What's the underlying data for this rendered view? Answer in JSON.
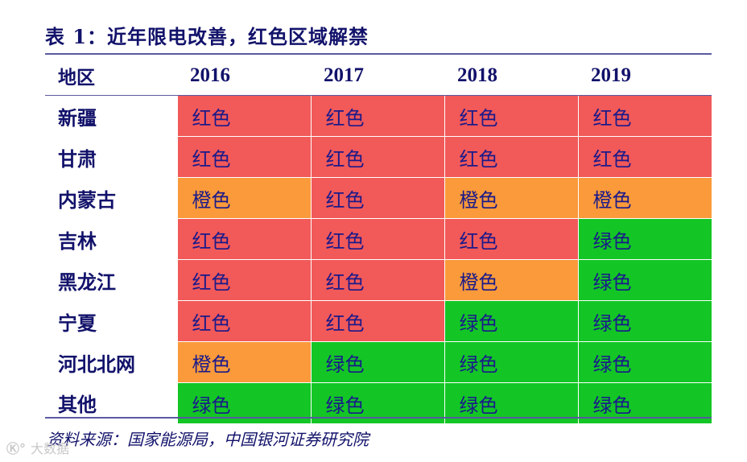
{
  "title": "表 1：近年限电改善，红色区域解禁",
  "header": {
    "region_label": "地区",
    "years": [
      "2016",
      "2017",
      "2018",
      "2019"
    ]
  },
  "rows": [
    {
      "region": "新疆",
      "values": [
        "红色",
        "红色",
        "红色",
        "红色"
      ]
    },
    {
      "region": "甘肃",
      "values": [
        "红色",
        "红色",
        "红色",
        "红色"
      ]
    },
    {
      "region": "内蒙古",
      "values": [
        "橙色",
        "红色",
        "橙色",
        "橙色"
      ]
    },
    {
      "region": "吉林",
      "values": [
        "红色",
        "红色",
        "红色",
        "绿色"
      ]
    },
    {
      "region": "黑龙江",
      "values": [
        "红色",
        "红色",
        "橙色",
        "绿色"
      ]
    },
    {
      "region": "宁夏",
      "values": [
        "红色",
        "红色",
        "绿色",
        "绿色"
      ]
    },
    {
      "region": "河北北网",
      "values": [
        "橙色",
        "绿色",
        "绿色",
        "绿色"
      ]
    },
    {
      "region": "其他",
      "values": [
        "绿色",
        "绿色",
        "绿色",
        "绿色"
      ]
    }
  ],
  "colors": {
    "红色": "#f25959",
    "橙色": "#fa9a3a",
    "绿色": "#13c625",
    "text": "#12126b"
  },
  "source": "资料来源：国家能源局，中国银河证券研究院",
  "watermark": {
    "logo": "Ⓚ°",
    "text": "大数据"
  }
}
